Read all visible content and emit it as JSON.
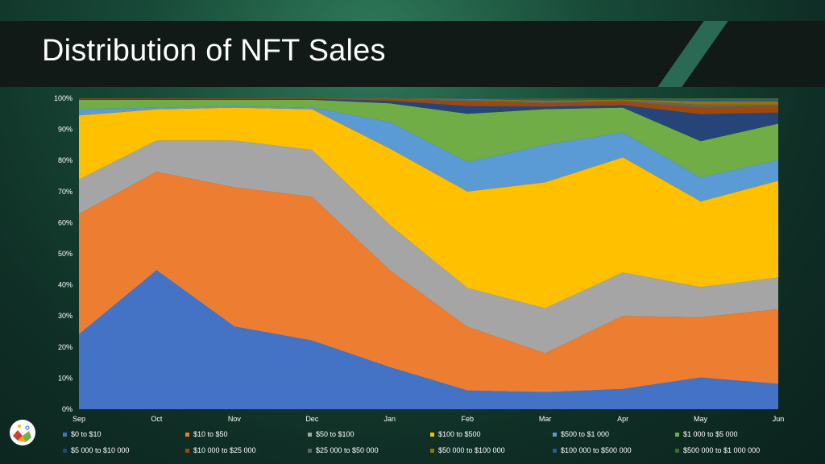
{
  "title": "Distribution of NFT Sales",
  "chart_data": {
    "type": "area",
    "stacked": true,
    "percent": true,
    "title": "Distribution of NFT Sales",
    "categories": [
      "Sep",
      "Oct",
      "Nov",
      "Dec",
      "Jan",
      "Feb",
      "Mar",
      "Apr",
      "May",
      "Jun"
    ],
    "y_ticks": [
      "0%",
      "10%",
      "20%",
      "30%",
      "40%",
      "50%",
      "60%",
      "70%",
      "80%",
      "90%",
      "100%"
    ],
    "ylim": [
      0,
      100
    ],
    "grid": false,
    "legend_position": "bottom",
    "series": [
      {
        "name": "$0 to $10",
        "color": "#4472c4",
        "values": [
          24,
          44.5,
          26.5,
          22,
          13.5,
          6,
          5.5,
          6.5,
          10,
          8
        ]
      },
      {
        "name": "$10 to $50",
        "color": "#ed7d31",
        "values": [
          38.5,
          31.5,
          44.5,
          46,
          31,
          20.5,
          12.5,
          23.5,
          19,
          23.5
        ]
      },
      {
        "name": "$50 to $100",
        "color": "#a5a5a5",
        "values": [
          11,
          10,
          15,
          15,
          14.5,
          12.5,
          14.5,
          14,
          9.5,
          10
        ]
      },
      {
        "name": "$100 to $500",
        "color": "#ffc000",
        "values": [
          20.5,
          10,
          10.5,
          13,
          24.5,
          31,
          40.5,
          37,
          27,
          30.5
        ]
      },
      {
        "name": "$500 to $1 000",
        "color": "#5b9bd5",
        "values": [
          2,
          0.5,
          0.5,
          0.5,
          8.5,
          9.5,
          12,
          8,
          7.5,
          6.5
        ]
      },
      {
        "name": "$1 000 to $5 000",
        "color": "#70ad47",
        "values": [
          3,
          2.5,
          2,
          2.5,
          6,
          15.5,
          11.5,
          8,
          11.5,
          11.5
        ]
      },
      {
        "name": "$5 000 to $10 000",
        "color": "#264478",
        "values": [
          0.3,
          0.3,
          0.3,
          0.3,
          0.8,
          2.5,
          0.8,
          0.8,
          8.5,
          3.5
        ]
      },
      {
        "name": "$10 000 to $25 000",
        "color": "#9e480e",
        "values": [
          0.2,
          0.2,
          0.2,
          0.2,
          0.5,
          1.5,
          1,
          1,
          2,
          2
        ]
      },
      {
        "name": "$25 000 to $50 000",
        "color": "#636363",
        "values": [
          0,
          0,
          0,
          0,
          0.2,
          0.5,
          0.5,
          0.5,
          1,
          0.5
        ]
      },
      {
        "name": "$50 000 to $100 000",
        "color": "#997300",
        "values": [
          0,
          0,
          0,
          0,
          0.1,
          0.3,
          0.5,
          0.3,
          1,
          1
        ]
      },
      {
        "name": "$100 000 to $500 000",
        "color": "#255e91",
        "values": [
          0,
          0,
          0,
          0,
          0,
          0.2,
          0.5,
          0.2,
          0.5,
          0.5
        ]
      },
      {
        "name": "$500 000 to $1 000 000",
        "color": "#43682b",
        "values": [
          0,
          0,
          0,
          0,
          0,
          0,
          0.2,
          0.2,
          0.5,
          0.5
        ]
      }
    ]
  }
}
